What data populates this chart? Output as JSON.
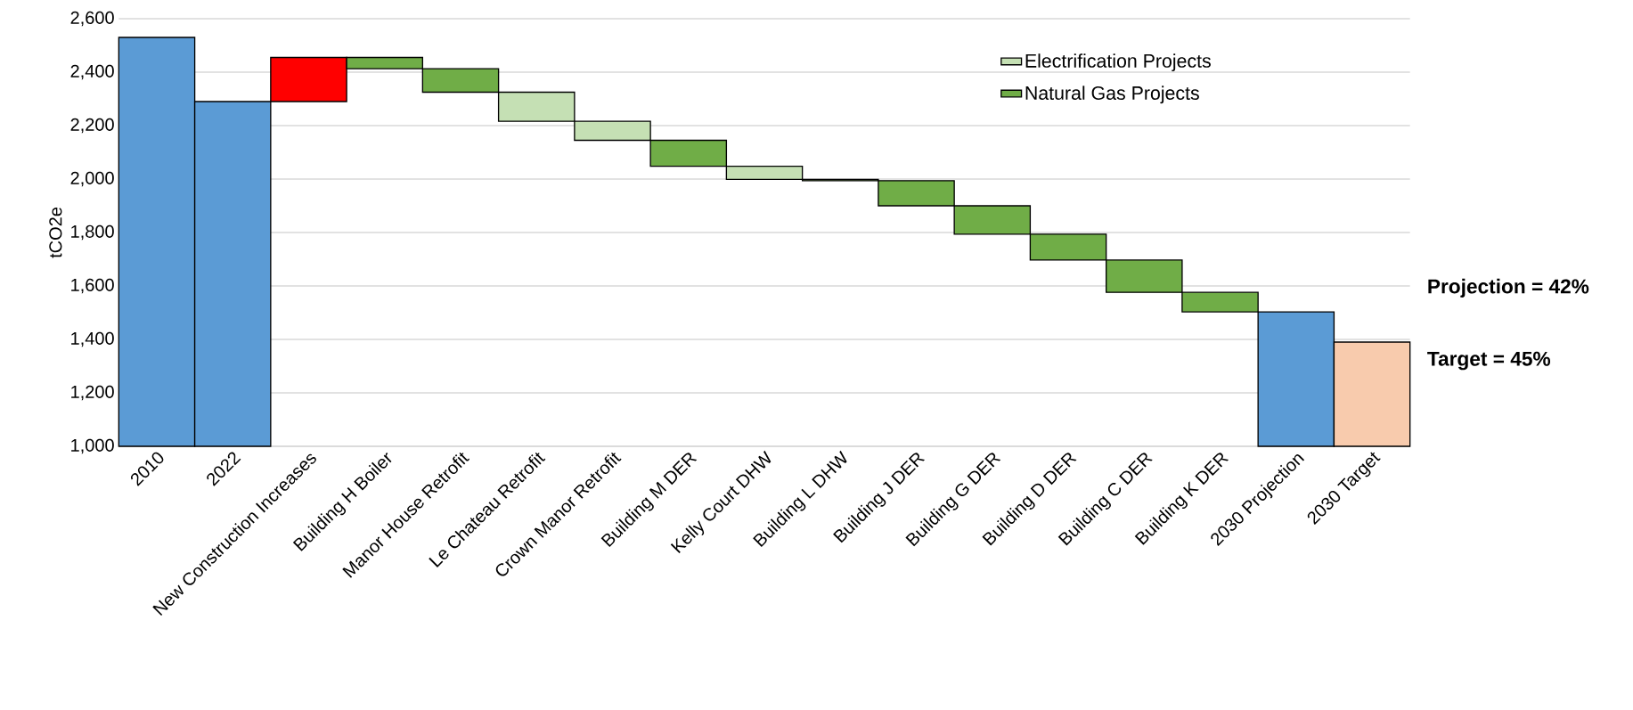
{
  "chart_data": {
    "type": "bar",
    "ylabel": "tCO2e",
    "categories": [
      "2010",
      "2022",
      "New Construction Increases",
      "Building H Boiler",
      "Manor House Retrofit",
      "Le Chateau Retrofit",
      "Crown Manor Retrofit",
      "Building M DER",
      "Kelly Court DHW",
      "Building L DHW",
      "Building J DER",
      "Building G DER",
      "Building D DER",
      "Building C DER",
      "Building K DER",
      "2030 Projection",
      "2030 Target"
    ],
    "series": [
      {
        "values": [
          2530,
          2290,
          165,
          null,
          null,
          null,
          null,
          null,
          null,
          null,
          null,
          null,
          null,
          null,
          null,
          1503,
          1390
        ],
        "base": [
          null,
          null,
          2290,
          null,
          null,
          null,
          null,
          null,
          null,
          null,
          null,
          null,
          null,
          null,
          null,
          null,
          null
        ],
        "colors": [
          "#5b9bd5",
          "#5b9bd5",
          "#ff0000",
          null,
          null,
          null,
          null,
          null,
          null,
          null,
          null,
          null,
          null,
          null,
          null,
          "#5b9bd5",
          "#f8cbad"
        ]
      },
      {
        "name": "Electrification Projects",
        "color": "#c5e0b4",
        "values": [
          null,
          null,
          null,
          null,
          null,
          -109,
          -71,
          null,
          -49,
          null,
          null,
          null,
          null,
          null,
          null,
          null,
          null
        ],
        "base": [
          null,
          null,
          null,
          null,
          null,
          2325,
          2216,
          null,
          2048,
          null,
          null,
          null,
          null,
          null,
          null,
          null,
          null
        ]
      },
      {
        "name": "Natural Gas Projects",
        "color": "#70ad47",
        "values": [
          null,
          null,
          null,
          -42,
          -88,
          null,
          null,
          -97,
          null,
          -5,
          -94,
          -106,
          -97,
          -121,
          -73,
          null,
          null
        ],
        "base": [
          null,
          null,
          null,
          2455,
          2413,
          null,
          null,
          2145,
          null,
          1999,
          1994,
          1900,
          1794,
          1697,
          1576,
          null,
          null
        ]
      }
    ],
    "ylim": [
      1000,
      2600
    ],
    "yticks": [
      {
        "value": 1000,
        "label": "1,000"
      },
      {
        "value": 1200,
        "label": "1,200"
      },
      {
        "value": 1400,
        "label": "1,400"
      },
      {
        "value": 1600,
        "label": "1,600"
      },
      {
        "value": 1800,
        "label": "1,800"
      },
      {
        "value": 2000,
        "label": "2,000"
      },
      {
        "value": 2200,
        "label": "2,200"
      },
      {
        "value": 2400,
        "label": "2,400"
      },
      {
        "value": 2600,
        "label": "2,600"
      }
    ],
    "grid": "y",
    "legend": "top right",
    "annotations": [
      "Projection = 42%",
      "Target = 45%"
    ]
  }
}
